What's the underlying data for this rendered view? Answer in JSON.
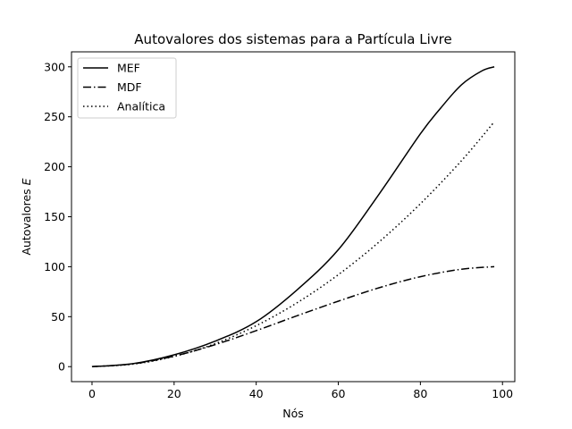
{
  "chart_data": {
    "type": "line",
    "title": "Autovalores dos sistemas para a Partícula Livre",
    "xlabel": "Nós",
    "ylabel": "Autovalores E",
    "xlim": [
      -5,
      103
    ],
    "ylim": [
      -15,
      315
    ],
    "xticks": [
      0,
      20,
      40,
      60,
      80,
      100
    ],
    "yticks": [
      0,
      50,
      100,
      150,
      200,
      250,
      300
    ],
    "legend_position": "upper-left",
    "grid": false,
    "series": [
      {
        "name": "MEF",
        "style": "solid",
        "color": "#000000",
        "x": [
          0,
          10,
          20,
          30,
          40,
          50,
          60,
          70,
          80,
          85,
          90,
          95,
          98
        ],
        "y": [
          0,
          3,
          11.8,
          25.5,
          45,
          77,
          117,
          173,
          233,
          259,
          282,
          296,
          300
        ]
      },
      {
        "name": "MDF",
        "style": "dashdot",
        "color": "#000000",
        "x": [
          0,
          10,
          20,
          30,
          40,
          50,
          60,
          70,
          80,
          90,
          98
        ],
        "y": [
          0,
          2.8,
          10.5,
          22,
          36,
          51,
          65.5,
          79,
          90,
          97.5,
          100
        ]
      },
      {
        "name": "Analítica",
        "style": "dotted",
        "color": "#000000",
        "x": [
          0,
          10,
          20,
          30,
          40,
          50,
          60,
          70,
          80,
          90,
          98
        ],
        "y": [
          0,
          2.5,
          10.2,
          23,
          41,
          64,
          92,
          125,
          163,
          206,
          245
        ]
      }
    ]
  }
}
